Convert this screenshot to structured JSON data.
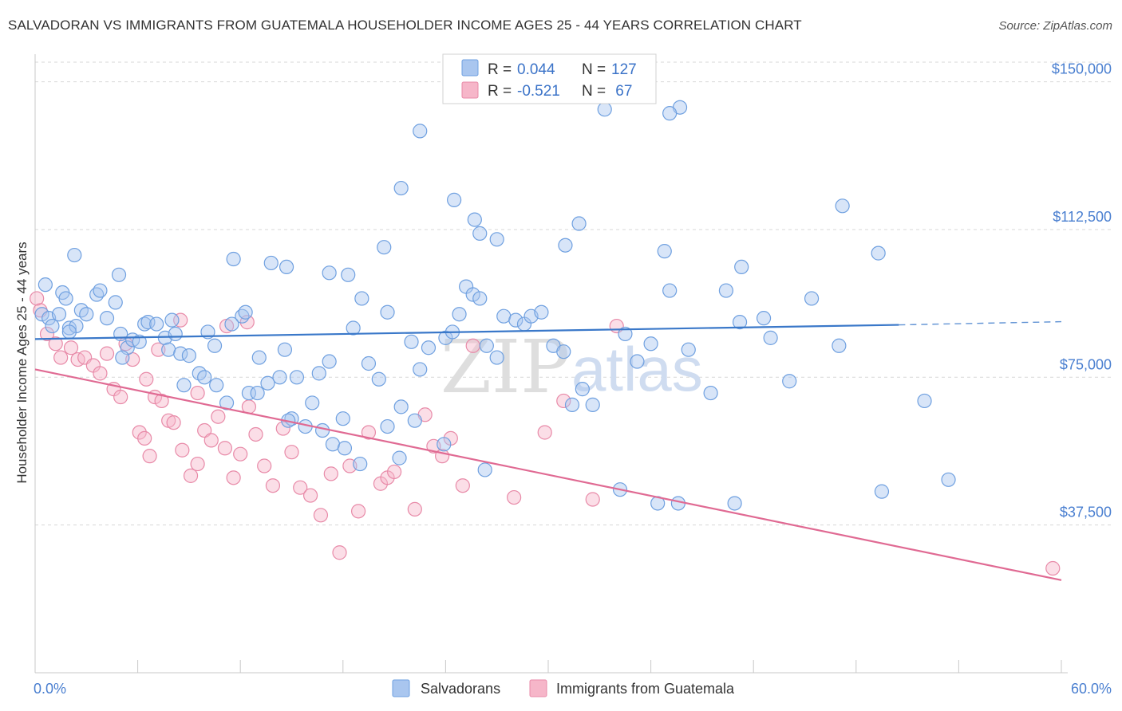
{
  "title": "SALVADORAN VS IMMIGRANTS FROM GUATEMALA HOUSEHOLDER INCOME AGES 25 - 44 YEARS CORRELATION CHART",
  "source": "Source: ZipAtlas.com",
  "watermark": {
    "part1": "ZIP",
    "part2": "atlas"
  },
  "legend_box": {
    "rows": [
      {
        "r_label": "R = ",
        "r_value": "0.044",
        "n_label": "N = ",
        "n_value": "127",
        "color": "#a9c6ef"
      },
      {
        "r_label": "R = ",
        "r_value": "-0.521",
        "n_label": "N = ",
        "n_value": " 67",
        "color": "#f6b6c9"
      }
    ]
  },
  "bottom_legend": [
    {
      "label": "Salvadorans",
      "color": "#a9c6ef"
    },
    {
      "label": "Immigrants from Guatemala",
      "color": "#f6b6c9"
    }
  ],
  "chart_data": {
    "type": "scatter",
    "title": "SALVADORAN VS IMMIGRANTS FROM GUATEMALA HOUSEHOLDER INCOME AGES 25 - 44 YEARS CORRELATION CHART",
    "xlabel": "",
    "ylabel": "Householder Income Ages 25 - 44 years",
    "xlim": [
      0,
      60
    ],
    "ylim": [
      0,
      157000
    ],
    "x_tick_labels": [
      "0.0%",
      "60.0%"
    ],
    "y_ticks": [
      37500,
      75000,
      112500,
      150000
    ],
    "y_tick_labels": [
      "$37,500",
      "$75,000",
      "$112,500",
      "$150,000"
    ],
    "grid": "horizontal dashed",
    "legend_position": "top-center",
    "series": [
      {
        "name": "Salvadorans",
        "color": "#6fa0e0",
        "fill": "#a9c6ef",
        "r": 0.044,
        "n": 127,
        "trend": {
          "x0": 0,
          "y0": 84700,
          "x1": 50.5,
          "y1": 88300,
          "dashed_to": 60,
          "y_dashed_end": 89100
        },
        "points": [
          [
            0.4,
            91000
          ],
          [
            0.8,
            90000
          ],
          [
            1.0,
            88000
          ],
          [
            1.4,
            91000
          ],
          [
            0.6,
            98500
          ],
          [
            1.6,
            96500
          ],
          [
            2.0,
            87500
          ],
          [
            2.4,
            88000
          ],
          [
            2.0,
            86500
          ],
          [
            1.8,
            95000
          ],
          [
            2.7,
            92000
          ],
          [
            3.0,
            91000
          ],
          [
            3.6,
            96000
          ],
          [
            3.8,
            97000
          ],
          [
            4.2,
            90000
          ],
          [
            4.7,
            94000
          ],
          [
            5.0,
            86000
          ],
          [
            5.4,
            82500
          ],
          [
            5.1,
            80000
          ],
          [
            5.7,
            84500
          ],
          [
            6.1,
            84000
          ],
          [
            6.4,
            88500
          ],
          [
            6.6,
            89000
          ],
          [
            7.1,
            88500
          ],
          [
            7.6,
            85000
          ],
          [
            7.8,
            82000
          ],
          [
            8.5,
            81000
          ],
          [
            8.2,
            86000
          ],
          [
            9.0,
            80500
          ],
          [
            9.6,
            76000
          ],
          [
            8.7,
            73000
          ],
          [
            9.9,
            75000
          ],
          [
            10.5,
            83000
          ],
          [
            11.2,
            68500
          ],
          [
            10.6,
            73000
          ],
          [
            12.1,
            90500
          ],
          [
            11.5,
            88500
          ],
          [
            12.5,
            71000
          ],
          [
            13.1,
            80000
          ],
          [
            12.3,
            91500
          ],
          [
            13.6,
            73500
          ],
          [
            14.3,
            75000
          ],
          [
            15.0,
            64500
          ],
          [
            14.6,
            82000
          ],
          [
            15.3,
            75000
          ],
          [
            16.2,
            68500
          ],
          [
            16.6,
            76000
          ],
          [
            17.2,
            79000
          ],
          [
            16.8,
            61500
          ],
          [
            18.0,
            64500
          ],
          [
            18.6,
            87500
          ],
          [
            19.1,
            95000
          ],
          [
            19.5,
            78500
          ],
          [
            20.1,
            74500
          ],
          [
            20.6,
            91500
          ],
          [
            21.4,
            67500
          ],
          [
            22.0,
            84000
          ],
          [
            22.5,
            77000
          ],
          [
            23.0,
            82500
          ],
          [
            24.0,
            85000
          ],
          [
            24.4,
            86500
          ],
          [
            24.8,
            91000
          ],
          [
            25.2,
            98000
          ],
          [
            25.6,
            96000
          ],
          [
            26.0,
            95000
          ],
          [
            26.4,
            83000
          ],
          [
            27.0,
            80000
          ],
          [
            27.4,
            90500
          ],
          [
            28.1,
            89500
          ],
          [
            28.6,
            88500
          ],
          [
            29.0,
            90500
          ],
          [
            29.6,
            91500
          ],
          [
            30.3,
            83000
          ],
          [
            30.9,
            81500
          ],
          [
            31.4,
            68000
          ],
          [
            32.0,
            72000
          ],
          [
            32.6,
            68000
          ],
          [
            34.5,
            86000
          ],
          [
            35.2,
            79000
          ],
          [
            36.0,
            83500
          ],
          [
            37.1,
            97000
          ],
          [
            38.2,
            82000
          ],
          [
            39.5,
            71000
          ],
          [
            40.4,
            97000
          ],
          [
            41.2,
            89000
          ],
          [
            42.6,
            90000
          ],
          [
            43.0,
            85000
          ],
          [
            44.1,
            74000
          ],
          [
            45.4,
            95000
          ],
          [
            47.0,
            83000
          ],
          [
            49.5,
            46000
          ],
          [
            52.0,
            69000
          ],
          [
            53.4,
            49000
          ],
          [
            2.3,
            106000
          ],
          [
            4.9,
            101000
          ],
          [
            11.6,
            105000
          ],
          [
            13.8,
            104000
          ],
          [
            14.7,
            103000
          ],
          [
            17.2,
            101500
          ],
          [
            18.3,
            101000
          ],
          [
            20.4,
            108000
          ],
          [
            21.4,
            123000
          ],
          [
            22.5,
            137500
          ],
          [
            24.5,
            120000
          ],
          [
            25.7,
            115000
          ],
          [
            26.0,
            111500
          ],
          [
            27.0,
            110000
          ],
          [
            31.0,
            108500
          ],
          [
            31.8,
            114000
          ],
          [
            36.8,
            107000
          ],
          [
            41.3,
            103000
          ],
          [
            49.3,
            106500
          ],
          [
            8.0,
            89500
          ],
          [
            10.1,
            86500
          ],
          [
            13.0,
            71000
          ],
          [
            14.8,
            64000
          ],
          [
            15.8,
            62500
          ],
          [
            17.4,
            58000
          ],
          [
            18.1,
            57000
          ],
          [
            19.0,
            53000
          ],
          [
            20.6,
            62500
          ],
          [
            21.3,
            54500
          ],
          [
            22.2,
            64000
          ],
          [
            23.9,
            58000
          ],
          [
            26.3,
            51500
          ],
          [
            34.2,
            46500
          ],
          [
            36.4,
            43000
          ],
          [
            37.6,
            43000
          ],
          [
            40.9,
            43000
          ],
          [
            47.2,
            118500
          ],
          [
            33.3,
            143000
          ],
          [
            37.7,
            143500
          ],
          [
            37.1,
            142000
          ]
        ]
      },
      {
        "name": "Immigrants from Guatemala",
        "color": "#e88aa8",
        "fill": "#f6b6c9",
        "r": -0.521,
        "n": 67,
        "trend": {
          "x0": 0,
          "y0": 77000,
          "x1": 60,
          "y1": 23500
        },
        "points": [
          [
            0.3,
            92000
          ],
          [
            0.7,
            86000
          ],
          [
            1.2,
            83500
          ],
          [
            1.5,
            80000
          ],
          [
            2.1,
            82500
          ],
          [
            2.5,
            79500
          ],
          [
            2.9,
            80000
          ],
          [
            3.4,
            78000
          ],
          [
            3.8,
            76000
          ],
          [
            4.2,
            81000
          ],
          [
            4.6,
            72000
          ],
          [
            5.0,
            70000
          ],
          [
            5.3,
            83500
          ],
          [
            5.7,
            79500
          ],
          [
            6.1,
            61000
          ],
          [
            6.4,
            59500
          ],
          [
            6.7,
            55000
          ],
          [
            7.0,
            70000
          ],
          [
            7.4,
            69000
          ],
          [
            7.8,
            64000
          ],
          [
            8.1,
            63500
          ],
          [
            8.6,
            56500
          ],
          [
            9.1,
            50000
          ],
          [
            9.5,
            53000
          ],
          [
            9.9,
            61500
          ],
          [
            10.3,
            59000
          ],
          [
            10.7,
            65000
          ],
          [
            11.1,
            57000
          ],
          [
            11.6,
            49500
          ],
          [
            12.0,
            55500
          ],
          [
            12.5,
            67500
          ],
          [
            12.9,
            60500
          ],
          [
            13.4,
            52500
          ],
          [
            13.9,
            47500
          ],
          [
            14.5,
            62000
          ],
          [
            15.0,
            56000
          ],
          [
            15.5,
            47000
          ],
          [
            16.1,
            45000
          ],
          [
            16.7,
            40000
          ],
          [
            17.3,
            50500
          ],
          [
            17.8,
            30500
          ],
          [
            18.4,
            52500
          ],
          [
            18.9,
            41000
          ],
          [
            19.5,
            61000
          ],
          [
            20.2,
            48000
          ],
          [
            20.6,
            49500
          ],
          [
            21.0,
            51000
          ],
          [
            22.2,
            41500
          ],
          [
            22.8,
            65500
          ],
          [
            23.3,
            57500
          ],
          [
            23.8,
            55000
          ],
          [
            24.3,
            59500
          ],
          [
            25.0,
            47500
          ],
          [
            25.6,
            83000
          ],
          [
            28.0,
            44500
          ],
          [
            29.8,
            61000
          ],
          [
            30.9,
            69000
          ],
          [
            32.6,
            44000
          ],
          [
            34.0,
            88000
          ],
          [
            11.2,
            88000
          ],
          [
            12.4,
            89000
          ],
          [
            8.5,
            89500
          ],
          [
            7.2,
            82000
          ],
          [
            6.5,
            74500
          ],
          [
            9.5,
            71000
          ],
          [
            59.5,
            26500
          ],
          [
            0.1,
            95000
          ]
        ]
      }
    ]
  }
}
